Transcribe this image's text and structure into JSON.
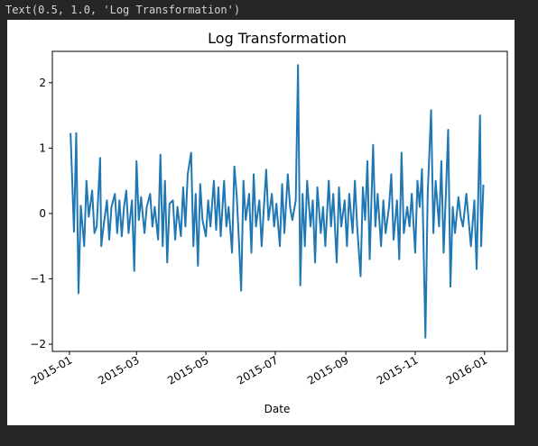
{
  "output_text": "Text(0.5, 1.0, 'Log Transformation')",
  "chart_data": {
    "type": "line",
    "title": "Log Transformation",
    "x_label": "Date",
    "color": "#1f77b4",
    "xlim": [
      -15,
      385
    ],
    "xticks": [
      {
        "value": 0,
        "label": "2015-01"
      },
      {
        "value": 59,
        "label": "2015-03"
      },
      {
        "value": 120,
        "label": "2015-05"
      },
      {
        "value": 181,
        "label": "2015-07"
      },
      {
        "value": 243,
        "label": "2015-09"
      },
      {
        "value": 304,
        "label": "2015-11"
      },
      {
        "value": 365,
        "label": "2016-01"
      }
    ],
    "ylim": [
      -2.11,
      2.48
    ],
    "yticks": [
      {
        "value": -2,
        "label": "−2"
      },
      {
        "value": -1,
        "label": "−1"
      },
      0,
      1,
      2
    ],
    "x": [
      1,
      4,
      6,
      8,
      10,
      13,
      15,
      17,
      20,
      22,
      24,
      27,
      28,
      30,
      33,
      35,
      37,
      40,
      42,
      44,
      46,
      48,
      50,
      52,
      55,
      57,
      59,
      61,
      63,
      66,
      68,
      71,
      73,
      75,
      78,
      80,
      82,
      84,
      86,
      88,
      91,
      93,
      95,
      98,
      100,
      102,
      104,
      107,
      109,
      111,
      113,
      115,
      117,
      120,
      122,
      124,
      127,
      129,
      131,
      133,
      136,
      138,
      140,
      143,
      145,
      147,
      149,
      151,
      153,
      155,
      158,
      160,
      162,
      164,
      167,
      169,
      171,
      173,
      175,
      178,
      180,
      182,
      185,
      187,
      189,
      192,
      194,
      196,
      199,
      201,
      203,
      205,
      207,
      209,
      212,
      214,
      216,
      218,
      221,
      223,
      225,
      228,
      230,
      232,
      235,
      237,
      239,
      242,
      244,
      246,
      249,
      251,
      253,
      256,
      258,
      260,
      262,
      264,
      267,
      269,
      271,
      274,
      276,
      278,
      281,
      283,
      285,
      288,
      290,
      292,
      294,
      297,
      299,
      301,
      304,
      306,
      308,
      310,
      313,
      315,
      318,
      320,
      322,
      325,
      327,
      329,
      331,
      333,
      335,
      337,
      339,
      342,
      344,
      346,
      349,
      351,
      353,
      356,
      358,
      361,
      362,
      364
    ],
    "values": [
      1.23,
      -0.28,
      1.23,
      -1.22,
      0.12,
      -0.5,
      0.5,
      -0.05,
      0.35,
      -0.3,
      -0.2,
      0.85,
      -0.5,
      -0.2,
      0.2,
      -0.4,
      0.1,
      0.3,
      -0.3,
      0.2,
      -0.35,
      0.1,
      0.35,
      -0.3,
      0.2,
      -0.88,
      0.8,
      -0.1,
      0.25,
      -0.3,
      0.1,
      0.3,
      -0.2,
      0.1,
      -0.4,
      0.9,
      -0.5,
      0.5,
      -0.75,
      0.15,
      0.2,
      -0.4,
      0.1,
      -0.35,
      0.4,
      -0.2,
      0.6,
      0.93,
      -0.5,
      0.3,
      -0.8,
      0.45,
      -0.1,
      -0.35,
      0.2,
      -0.2,
      0.5,
      -0.25,
      0.4,
      -0.35,
      0.5,
      -0.2,
      0.1,
      -0.6,
      0.72,
      0.3,
      -0.4,
      -1.18,
      0.5,
      -0.1,
      0.3,
      -0.6,
      0.6,
      -0.2,
      0.2,
      -0.5,
      0.1,
      0.67,
      -0.1,
      0.3,
      -0.2,
      0.15,
      -0.5,
      0.45,
      -0.3,
      0.6,
      0.1,
      -0.1,
      0.2,
      2.27,
      -1.1,
      0.3,
      -0.5,
      0.5,
      -0.2,
      0.2,
      -0.75,
      0.4,
      -0.3,
      0.1,
      -0.5,
      0.5,
      -0.2,
      0.3,
      -0.75,
      0.4,
      -0.2,
      0.2,
      -0.5,
      0.3,
      -0.3,
      0.5,
      -0.2,
      -0.96,
      0.4,
      -0.1,
      0.8,
      -0.7,
      1.05,
      -0.2,
      0.3,
      -0.5,
      0.2,
      -0.3,
      0.1,
      0.6,
      -0.4,
      0.2,
      -0.7,
      0.93,
      -0.3,
      0.1,
      -0.2,
      0.3,
      -0.6,
      0.5,
      0.1,
      0.68,
      -1.9,
      0.3,
      1.58,
      -0.3,
      0.5,
      -0.2,
      0.8,
      -0.6,
      0.3,
      1.28,
      -1.12,
      0.1,
      -0.3,
      0.25,
      -0.05,
      -0.2,
      0.3,
      -0.1,
      -0.5,
      0.2,
      -0.85,
      1.5,
      -0.5,
      0.44
    ]
  }
}
